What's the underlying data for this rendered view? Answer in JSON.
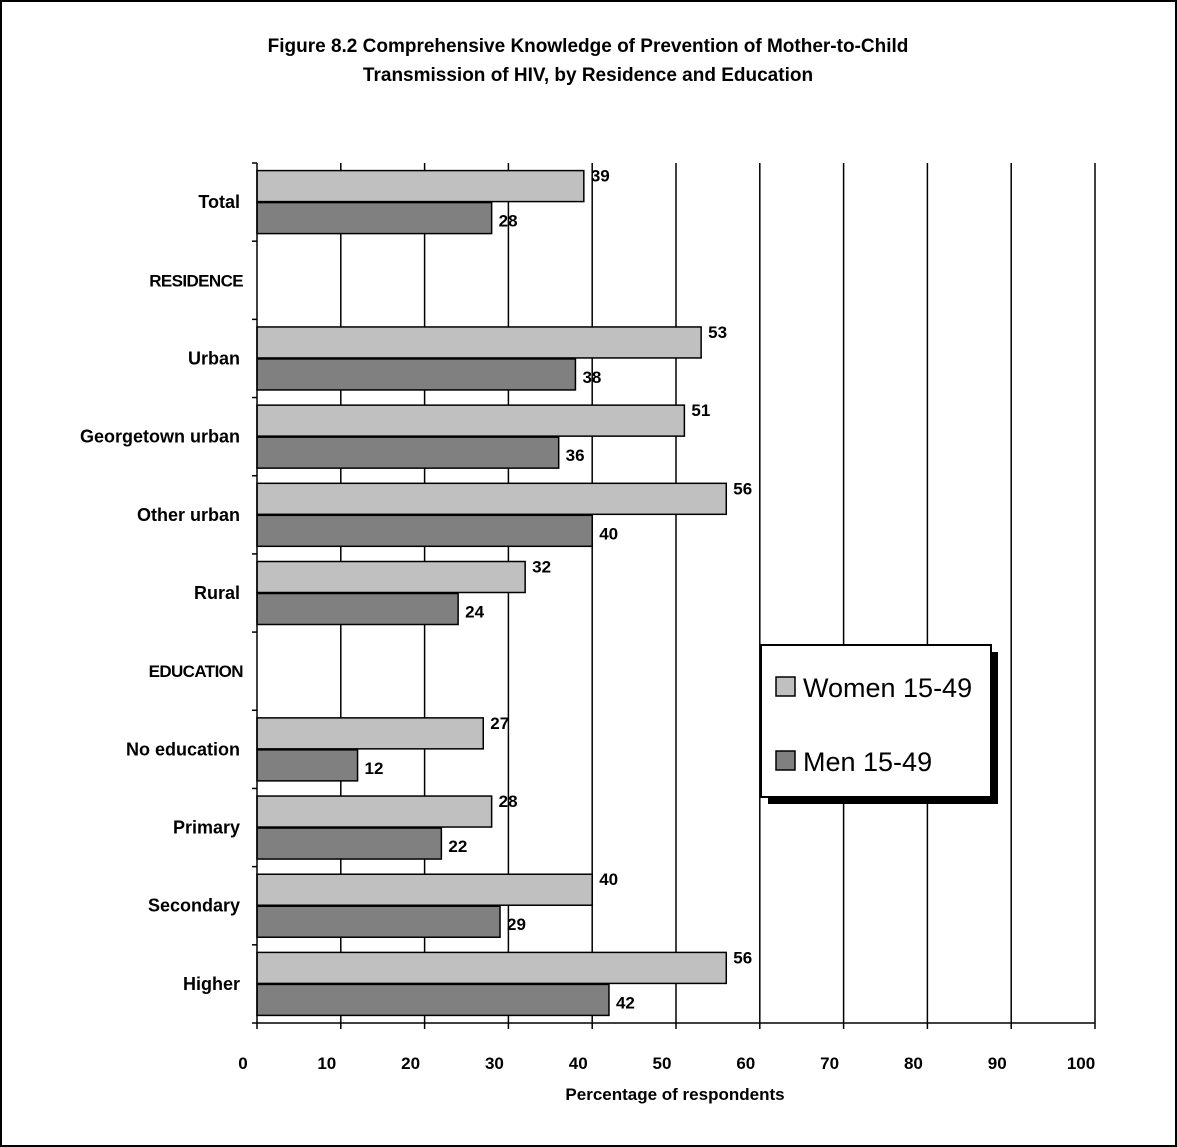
{
  "chart_data": {
    "type": "bar",
    "orientation": "horizontal",
    "title": "Figure 8.2 Comprehensive Knowledge of Prevention of Mother-to-Child Transmission of HIV, by Residence and Education",
    "title_lines": [
      "Figure 8.2 Comprehensive Knowledge of Prevention of Mother-to-Child",
      "Transmission of HIV, by Residence and Education"
    ],
    "xlabel": "Percentage of respondents",
    "ylabel": "",
    "xlim": [
      0,
      100
    ],
    "x_ticks": [
      "0",
      "10",
      "20",
      "30",
      "40",
      "50",
      "60",
      "70",
      "80",
      "90",
      "100"
    ],
    "grid": "vertical",
    "legend_position": "right",
    "categories": [
      {
        "label": "Total",
        "kind": "category"
      },
      {
        "label": "RESIDENCE",
        "kind": "section"
      },
      {
        "label": "Urban",
        "kind": "category"
      },
      {
        "label": "Georgetown urban",
        "kind": "category"
      },
      {
        "label": "Other urban",
        "kind": "category"
      },
      {
        "label": "Rural",
        "kind": "category"
      },
      {
        "label": "EDUCATION",
        "kind": "section"
      },
      {
        "label": "No education",
        "kind": "category"
      },
      {
        "label": "Primary",
        "kind": "category"
      },
      {
        "label": "Secondary",
        "kind": "category"
      },
      {
        "label": "Higher",
        "kind": "category"
      }
    ],
    "series": [
      {
        "name": "Women 15-49",
        "color": "#c0c0c0",
        "values": [
          39,
          null,
          53,
          51,
          56,
          32,
          null,
          27,
          28,
          40,
          56
        ]
      },
      {
        "name": "Men 15-49",
        "color": "#808080",
        "values": [
          28,
          null,
          38,
          36,
          40,
          24,
          null,
          12,
          22,
          29,
          42
        ]
      }
    ]
  }
}
